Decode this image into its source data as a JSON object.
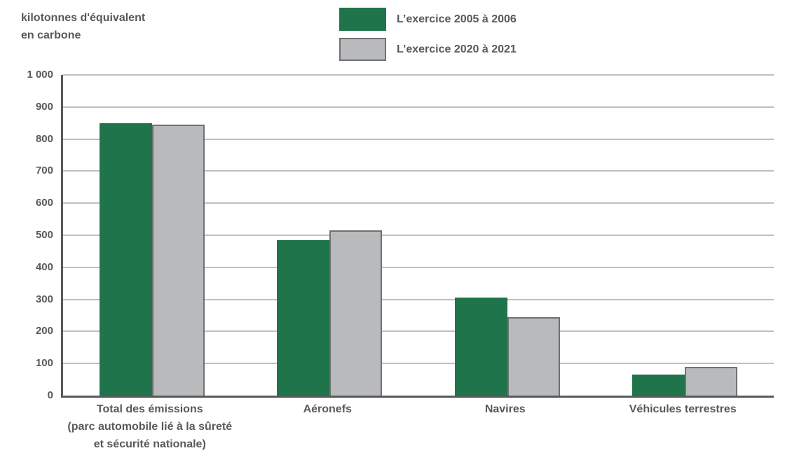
{
  "colors": {
    "series_2005_2006": "#1F744B",
    "series_2020_2021_fill": "#B9BABC",
    "series_2020_2021_border": "#6F7174",
    "gridline": "#BFBFBF",
    "axis": "#595959",
    "text": "#58595B"
  },
  "chart_data": {
    "type": "bar",
    "unit_label_lines": [
      "kilotonnes d'équivalent",
      "en carbone"
    ],
    "categories": [
      [
        "Total des émissions",
        "(parc automobile lié à la sûreté",
        "et sécurité nationale)"
      ],
      [
        "Aéronefs"
      ],
      [
        "Navires"
      ],
      [
        "Véhicules terrestres"
      ]
    ],
    "series": [
      {
        "name": "L’exercice 2005 à 2006",
        "color": "#1F744B",
        "values": [
          850,
          485,
          305,
          65
        ]
      },
      {
        "name": "L’exercice 2020 à 2021",
        "color": "#B9BABC",
        "border_color": "#6F7174",
        "values": [
          845,
          515,
          245,
          90
        ]
      }
    ],
    "ylim": [
      0,
      1000
    ],
    "ytick_step": 100,
    "ytick_labels_top_to_bottom": [
      "1 000",
      "900",
      "800",
      "700",
      "600",
      "500",
      "400",
      "300",
      "200",
      "100",
      "0"
    ],
    "grid": true,
    "legend_position": "top-center",
    "xlabel": "",
    "ylabel": "kilotonnes d'équivalent en carbone"
  }
}
